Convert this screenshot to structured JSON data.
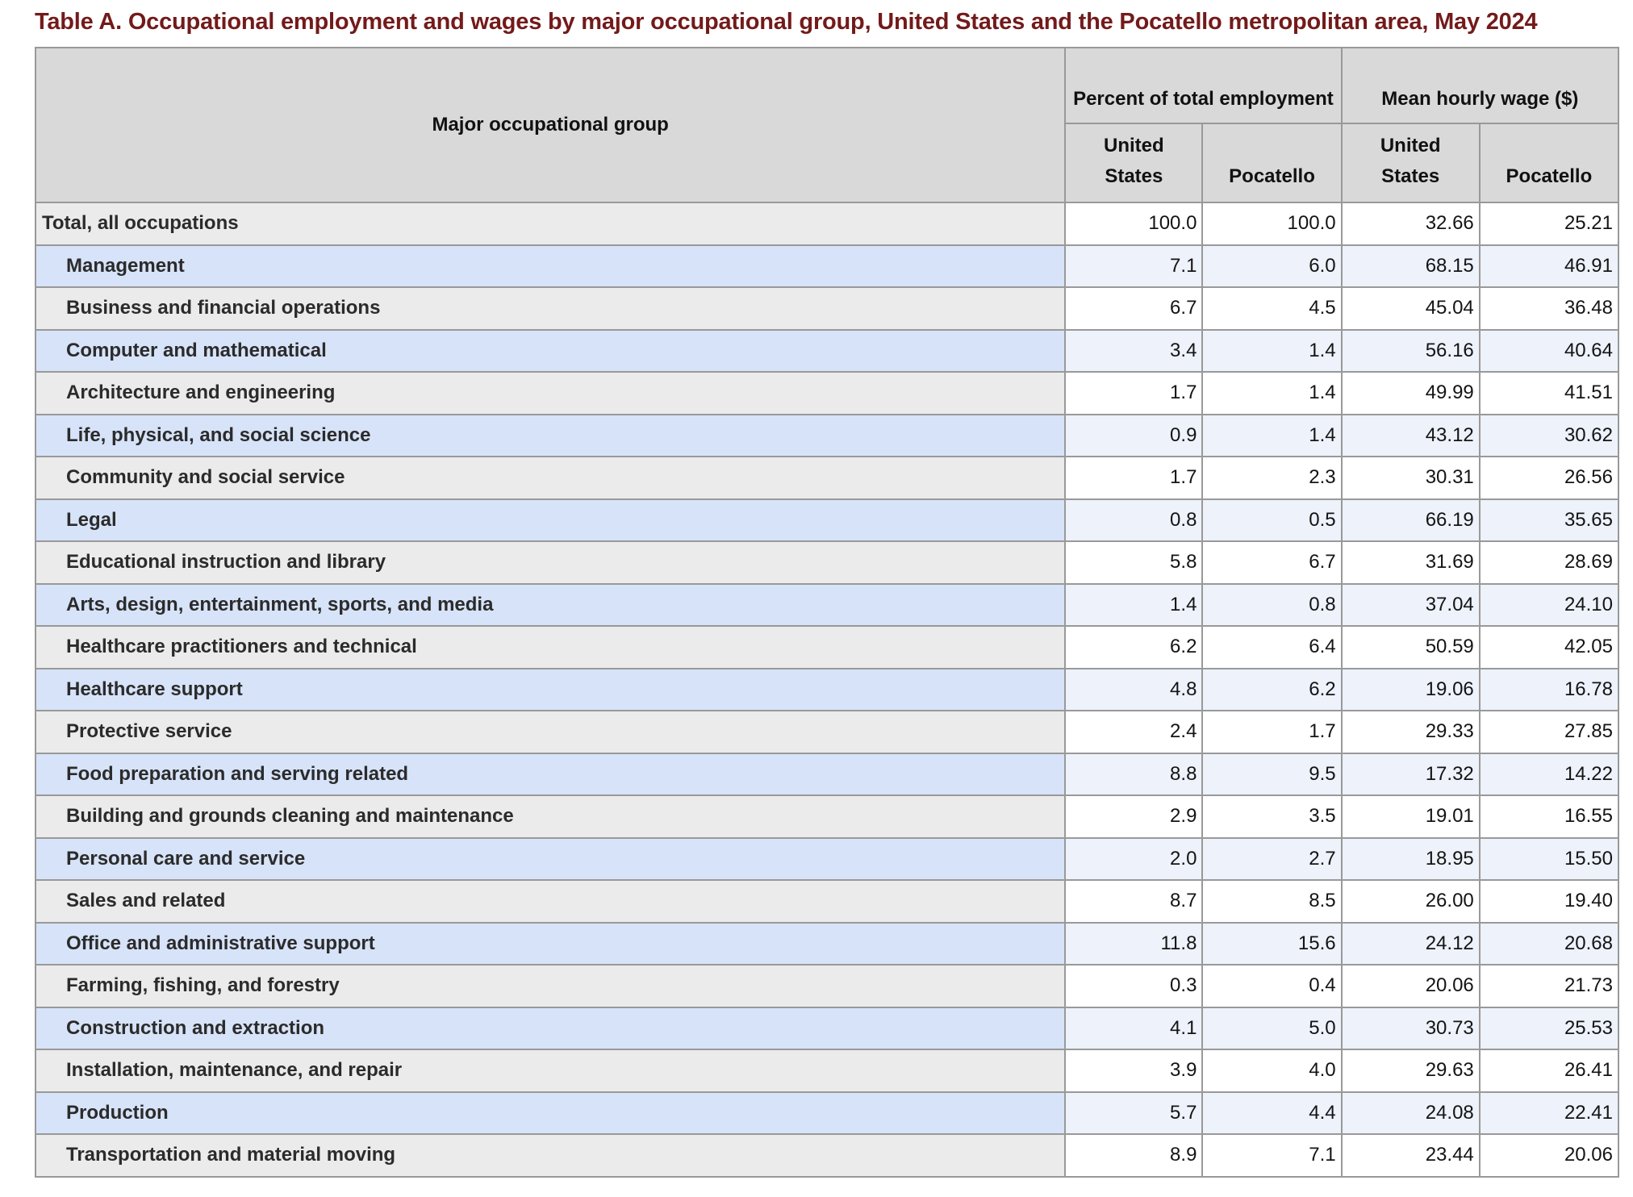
{
  "title": "Table A. Occupational employment and wages by major occupational group, United States and the Pocatello metropolitan area, May 2024",
  "colors": {
    "title_text": "#731a1a",
    "header_bg": "#d9d9d9",
    "row_label_gray": "#ebebeb",
    "row_label_blue": "#d7e3f8",
    "row_value_white": "#ffffff",
    "row_value_blue": "#edf2fb",
    "border": "#999999"
  },
  "table": {
    "row_header": "Major occupational group",
    "group_headers": [
      "Percent of total employment",
      "Mean hourly wage ($)"
    ],
    "sub_headers": [
      "United States",
      "Pocatello",
      "United States",
      "Pocatello"
    ],
    "rows": [
      {
        "label": "Total, all occupations",
        "indent": false,
        "values": [
          "100.0",
          "100.0",
          "32.66",
          "25.21"
        ]
      },
      {
        "label": "Management",
        "indent": true,
        "values": [
          "7.1",
          "6.0",
          "68.15",
          "46.91"
        ]
      },
      {
        "label": "Business and financial operations",
        "indent": true,
        "values": [
          "6.7",
          "4.5",
          "45.04",
          "36.48"
        ]
      },
      {
        "label": "Computer and mathematical",
        "indent": true,
        "values": [
          "3.4",
          "1.4",
          "56.16",
          "40.64"
        ]
      },
      {
        "label": "Architecture and engineering",
        "indent": true,
        "values": [
          "1.7",
          "1.4",
          "49.99",
          "41.51"
        ]
      },
      {
        "label": "Life, physical, and social science",
        "indent": true,
        "values": [
          "0.9",
          "1.4",
          "43.12",
          "30.62"
        ]
      },
      {
        "label": "Community and social service",
        "indent": true,
        "values": [
          "1.7",
          "2.3",
          "30.31",
          "26.56"
        ]
      },
      {
        "label": "Legal",
        "indent": true,
        "values": [
          "0.8",
          "0.5",
          "66.19",
          "35.65"
        ]
      },
      {
        "label": "Educational instruction and library",
        "indent": true,
        "values": [
          "5.8",
          "6.7",
          "31.69",
          "28.69"
        ]
      },
      {
        "label": "Arts, design, entertainment, sports, and media",
        "indent": true,
        "values": [
          "1.4",
          "0.8",
          "37.04",
          "24.10"
        ]
      },
      {
        "label": "Healthcare practitioners and technical",
        "indent": true,
        "values": [
          "6.2",
          "6.4",
          "50.59",
          "42.05"
        ]
      },
      {
        "label": "Healthcare support",
        "indent": true,
        "values": [
          "4.8",
          "6.2",
          "19.06",
          "16.78"
        ]
      },
      {
        "label": "Protective service",
        "indent": true,
        "values": [
          "2.4",
          "1.7",
          "29.33",
          "27.85"
        ]
      },
      {
        "label": "Food preparation and serving related",
        "indent": true,
        "values": [
          "8.8",
          "9.5",
          "17.32",
          "14.22"
        ]
      },
      {
        "label": "Building and grounds cleaning and maintenance",
        "indent": true,
        "values": [
          "2.9",
          "3.5",
          "19.01",
          "16.55"
        ]
      },
      {
        "label": "Personal care and service",
        "indent": true,
        "values": [
          "2.0",
          "2.7",
          "18.95",
          "15.50"
        ]
      },
      {
        "label": "Sales and related",
        "indent": true,
        "values": [
          "8.7",
          "8.5",
          "26.00",
          "19.40"
        ]
      },
      {
        "label": "Office and administrative support",
        "indent": true,
        "values": [
          "11.8",
          "15.6",
          "24.12",
          "20.68"
        ]
      },
      {
        "label": "Farming, fishing, and forestry",
        "indent": true,
        "values": [
          "0.3",
          "0.4",
          "20.06",
          "21.73"
        ]
      },
      {
        "label": "Construction and extraction",
        "indent": true,
        "values": [
          "4.1",
          "5.0",
          "30.73",
          "25.53"
        ]
      },
      {
        "label": "Installation, maintenance, and repair",
        "indent": true,
        "values": [
          "3.9",
          "4.0",
          "29.63",
          "26.41"
        ]
      },
      {
        "label": "Production",
        "indent": true,
        "values": [
          "5.7",
          "4.4",
          "24.08",
          "22.41"
        ]
      },
      {
        "label": "Transportation and material moving",
        "indent": true,
        "values": [
          "8.9",
          "7.1",
          "23.44",
          "20.06"
        ]
      }
    ]
  },
  "chart_data": {
    "type": "table",
    "title": "Table A. Occupational employment and wages by major occupational group, United States and the Pocatello metropolitan area, May 2024",
    "columns": [
      "Major occupational group",
      "Percent of total employment — United States",
      "Percent of total employment — Pocatello",
      "Mean hourly wage ($) — United States",
      "Mean hourly wage ($) — Pocatello"
    ],
    "rows": [
      [
        "Total, all occupations",
        100.0,
        100.0,
        32.66,
        25.21
      ],
      [
        "Management",
        7.1,
        6.0,
        68.15,
        46.91
      ],
      [
        "Business and financial operations",
        6.7,
        4.5,
        45.04,
        36.48
      ],
      [
        "Computer and mathematical",
        3.4,
        1.4,
        56.16,
        40.64
      ],
      [
        "Architecture and engineering",
        1.7,
        1.4,
        49.99,
        41.51
      ],
      [
        "Life, physical, and social science",
        0.9,
        1.4,
        43.12,
        30.62
      ],
      [
        "Community and social service",
        1.7,
        2.3,
        30.31,
        26.56
      ],
      [
        "Legal",
        0.8,
        0.5,
        66.19,
        35.65
      ],
      [
        "Educational instruction and library",
        5.8,
        6.7,
        31.69,
        28.69
      ],
      [
        "Arts, design, entertainment, sports, and media",
        1.4,
        0.8,
        37.04,
        24.1
      ],
      [
        "Healthcare practitioners and technical",
        6.2,
        6.4,
        50.59,
        42.05
      ],
      [
        "Healthcare support",
        4.8,
        6.2,
        19.06,
        16.78
      ],
      [
        "Protective service",
        2.4,
        1.7,
        29.33,
        27.85
      ],
      [
        "Food preparation and serving related",
        8.8,
        9.5,
        17.32,
        14.22
      ],
      [
        "Building and grounds cleaning and maintenance",
        2.9,
        3.5,
        19.01,
        16.55
      ],
      [
        "Personal care and service",
        2.0,
        2.7,
        18.95,
        15.5
      ],
      [
        "Sales and related",
        8.7,
        8.5,
        26.0,
        19.4
      ],
      [
        "Office and administrative support",
        11.8,
        15.6,
        24.12,
        20.68
      ],
      [
        "Farming, fishing, and forestry",
        0.3,
        0.4,
        20.06,
        21.73
      ],
      [
        "Construction and extraction",
        4.1,
        5.0,
        30.73,
        25.53
      ],
      [
        "Installation, maintenance, and repair",
        3.9,
        4.0,
        29.63,
        26.41
      ],
      [
        "Production",
        5.7,
        4.4,
        24.08,
        22.41
      ],
      [
        "Transportation and material moving",
        8.9,
        7.1,
        23.44,
        20.06
      ]
    ]
  }
}
